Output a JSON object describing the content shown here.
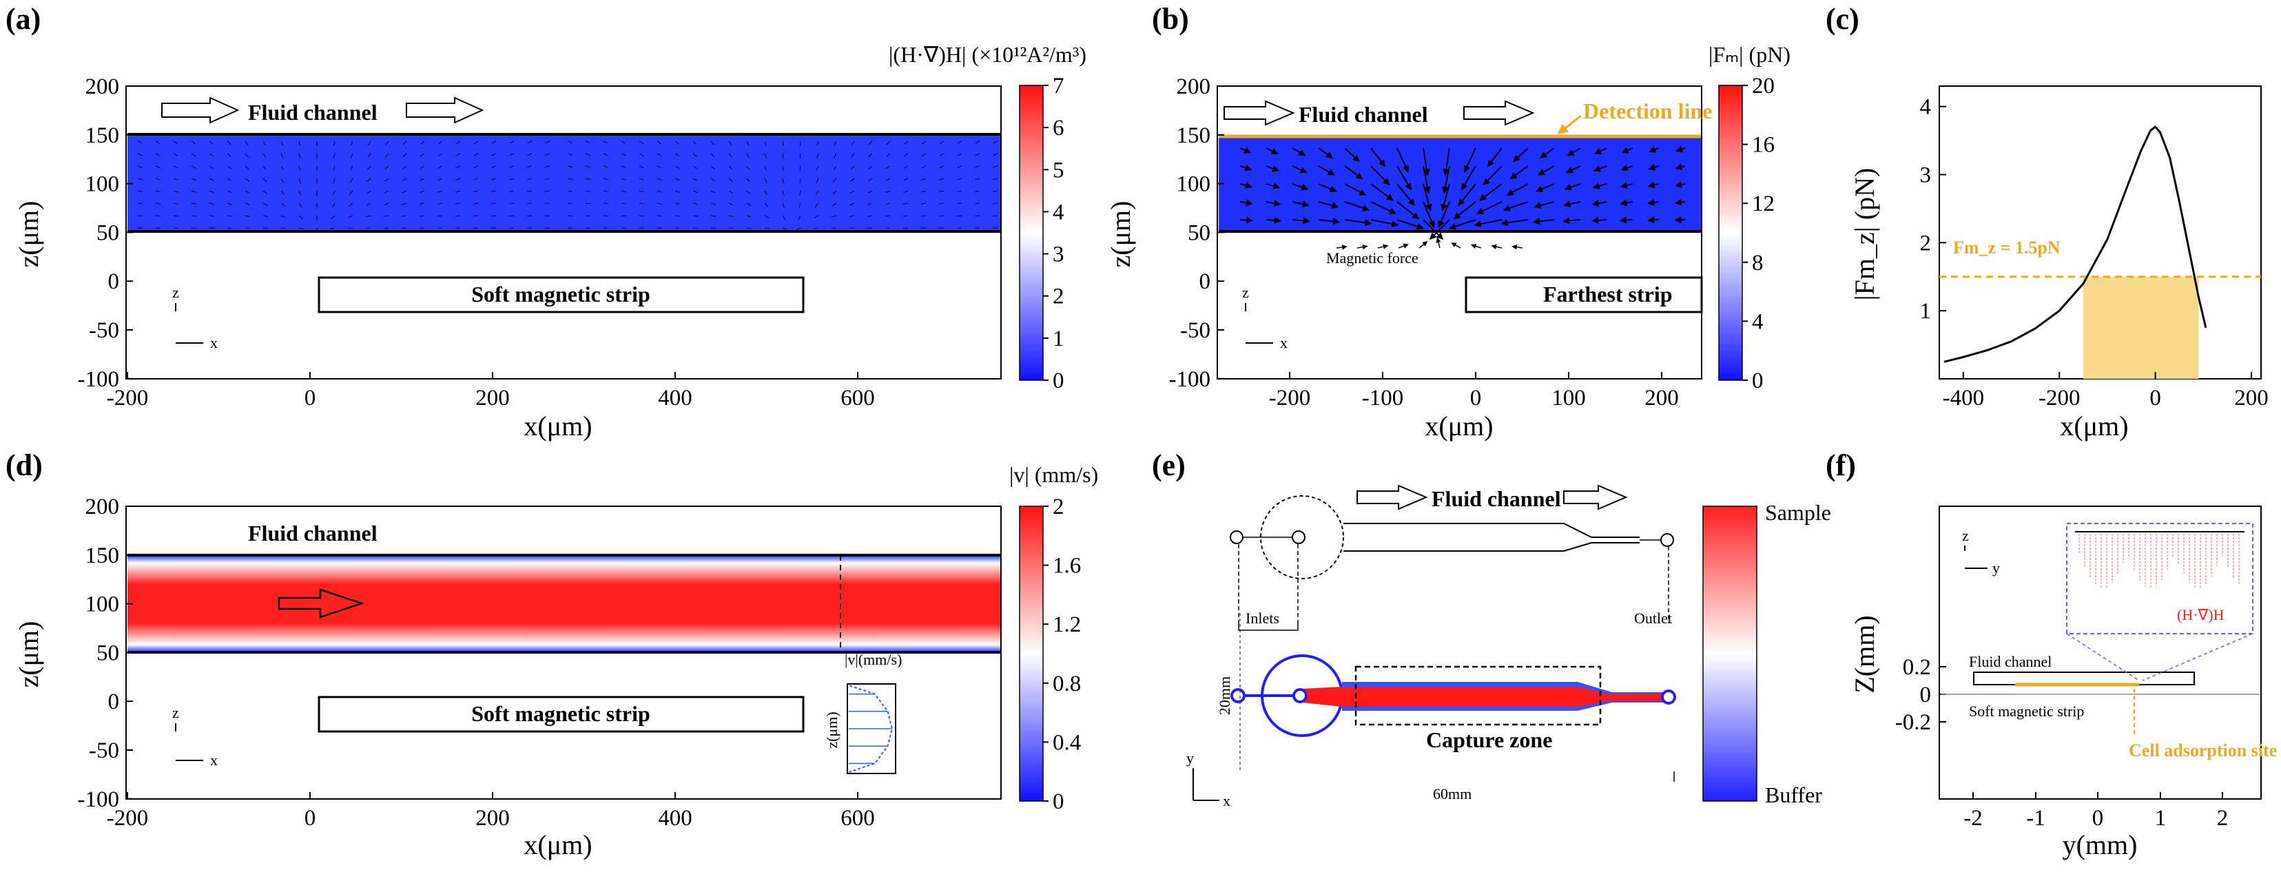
{
  "panels": {
    "a": {
      "label": "(a)",
      "cbar_title": "|(H·∇)H| (×10¹²A²/m³)",
      "cbar_ticks": [
        "7",
        "6",
        "5",
        "4",
        "3",
        "2",
        "1",
        "0"
      ],
      "x_ticks": [
        "-200",
        "0",
        "200",
        "400",
        "600"
      ],
      "y_ticks": [
        "200",
        "150",
        "100",
        "50",
        "0",
        "-50",
        "-100"
      ],
      "xlabel": "x(μm)",
      "ylabel": "z(μm)",
      "channel_text": "Fluid channel",
      "strip_text": "Soft magnetic strip",
      "axis_z": "z",
      "axis_x": "x"
    },
    "b": {
      "label": "(b)",
      "cbar_title": "|Fₘ| (pN)",
      "cbar_ticks": [
        "20",
        "16",
        "12",
        "8",
        "4",
        "0"
      ],
      "x_ticks": [
        "-200",
        "-100",
        "0",
        "100",
        "200"
      ],
      "y_ticks": [
        "200",
        "150",
        "100",
        "50",
        "0",
        "-50",
        "-100"
      ],
      "xlabel": "x(μm)",
      "ylabel": "z(μm)",
      "channel_text": "Fluid channel",
      "detection_text": "Detection line",
      "force_text": "Magnetic force",
      "strip_text": "Farthest strip",
      "axis_z": "z",
      "axis_x": "x"
    },
    "c": {
      "label": "(c)",
      "x_ticks": [
        "-400",
        "-200",
        "0",
        "200"
      ],
      "y_ticks": [
        "4",
        "3",
        "2",
        "1"
      ],
      "xlabel": "x(μm)",
      "ylabel": "|Fm_z| (pN)",
      "threshold_text": "Fm_z = 1.5pN"
    },
    "d": {
      "label": "(d)",
      "cbar_title": "|v| (mm/s)",
      "cbar_ticks": [
        "2",
        "1.6",
        "1.2",
        "0.8",
        "0.4",
        "0"
      ],
      "x_ticks": [
        "-200",
        "0",
        "200",
        "400",
        "600"
      ],
      "y_ticks": [
        "200",
        "150",
        "100",
        "50",
        "0",
        "-50",
        "-100"
      ],
      "xlabel": "x(μm)",
      "ylabel": "z(μm)",
      "channel_text": "Fluid channel",
      "strip_text": "Soft magnetic strip",
      "inset_title": "|v|(mm/s)",
      "inset_ylabel": "z(μm)",
      "axis_z": "z",
      "axis_x": "x"
    },
    "e": {
      "label": "(e)",
      "channel_text": "Fluid channel",
      "inlets_text": "Inlets",
      "outlet_text": "Outlet",
      "width_text": "20mm",
      "length_text": "60mm",
      "capture_text": "Capture zone",
      "cbar_top": "Sample",
      "cbar_bottom": "Buffer",
      "axis_y": "y",
      "axis_x": "x"
    },
    "f": {
      "label": "(f)",
      "x_ticks": [
        "-2",
        "-1",
        "0",
        "1",
        "2"
      ],
      "y_ticks": [
        "0.2",
        "0",
        "-0.2"
      ],
      "xlabel": "y(mm)",
      "ylabel": "Z(mm)",
      "channel_text": "Fluid channel",
      "strip_text": "Soft magnetic strip",
      "site_text": "Cell adsorption site",
      "inset_text": "(H·∇)H",
      "axis_z": "z",
      "axis_y": "y"
    }
  },
  "chart_data": [
    {
      "panel": "c",
      "type": "line",
      "title": "",
      "xlabel": "x(μm)",
      "ylabel": "|Fm_z| (pN)",
      "xlim": [
        -450,
        220
      ],
      "ylim": [
        0,
        4.3
      ],
      "series": [
        {
          "name": "|Fm_z|",
          "x": [
            -440,
            -400,
            -350,
            -300,
            -250,
            -200,
            -150,
            -100,
            -60,
            -30,
            -10,
            0,
            10,
            30,
            50,
            70,
            90,
            105
          ],
          "y": [
            0.25,
            0.32,
            0.42,
            0.55,
            0.74,
            1.0,
            1.4,
            2.05,
            2.8,
            3.35,
            3.65,
            3.7,
            3.62,
            3.25,
            2.6,
            1.9,
            1.2,
            0.75
          ]
        }
      ],
      "threshold": 1.5,
      "shaded_x": [
        -150,
        90
      ]
    },
    {
      "panel": "d-inset",
      "type": "line",
      "title": "|v|(mm/s)",
      "xlabel": "|v|(mm/s)",
      "ylabel": "z(μm)",
      "series": [
        {
          "name": "velocity profile",
          "x": [
            0,
            1.2,
            1.8,
            2.0,
            1.8,
            1.2,
            0
          ],
          "y": [
            50,
            60,
            80,
            100,
            120,
            140,
            150
          ]
        }
      ]
    }
  ]
}
